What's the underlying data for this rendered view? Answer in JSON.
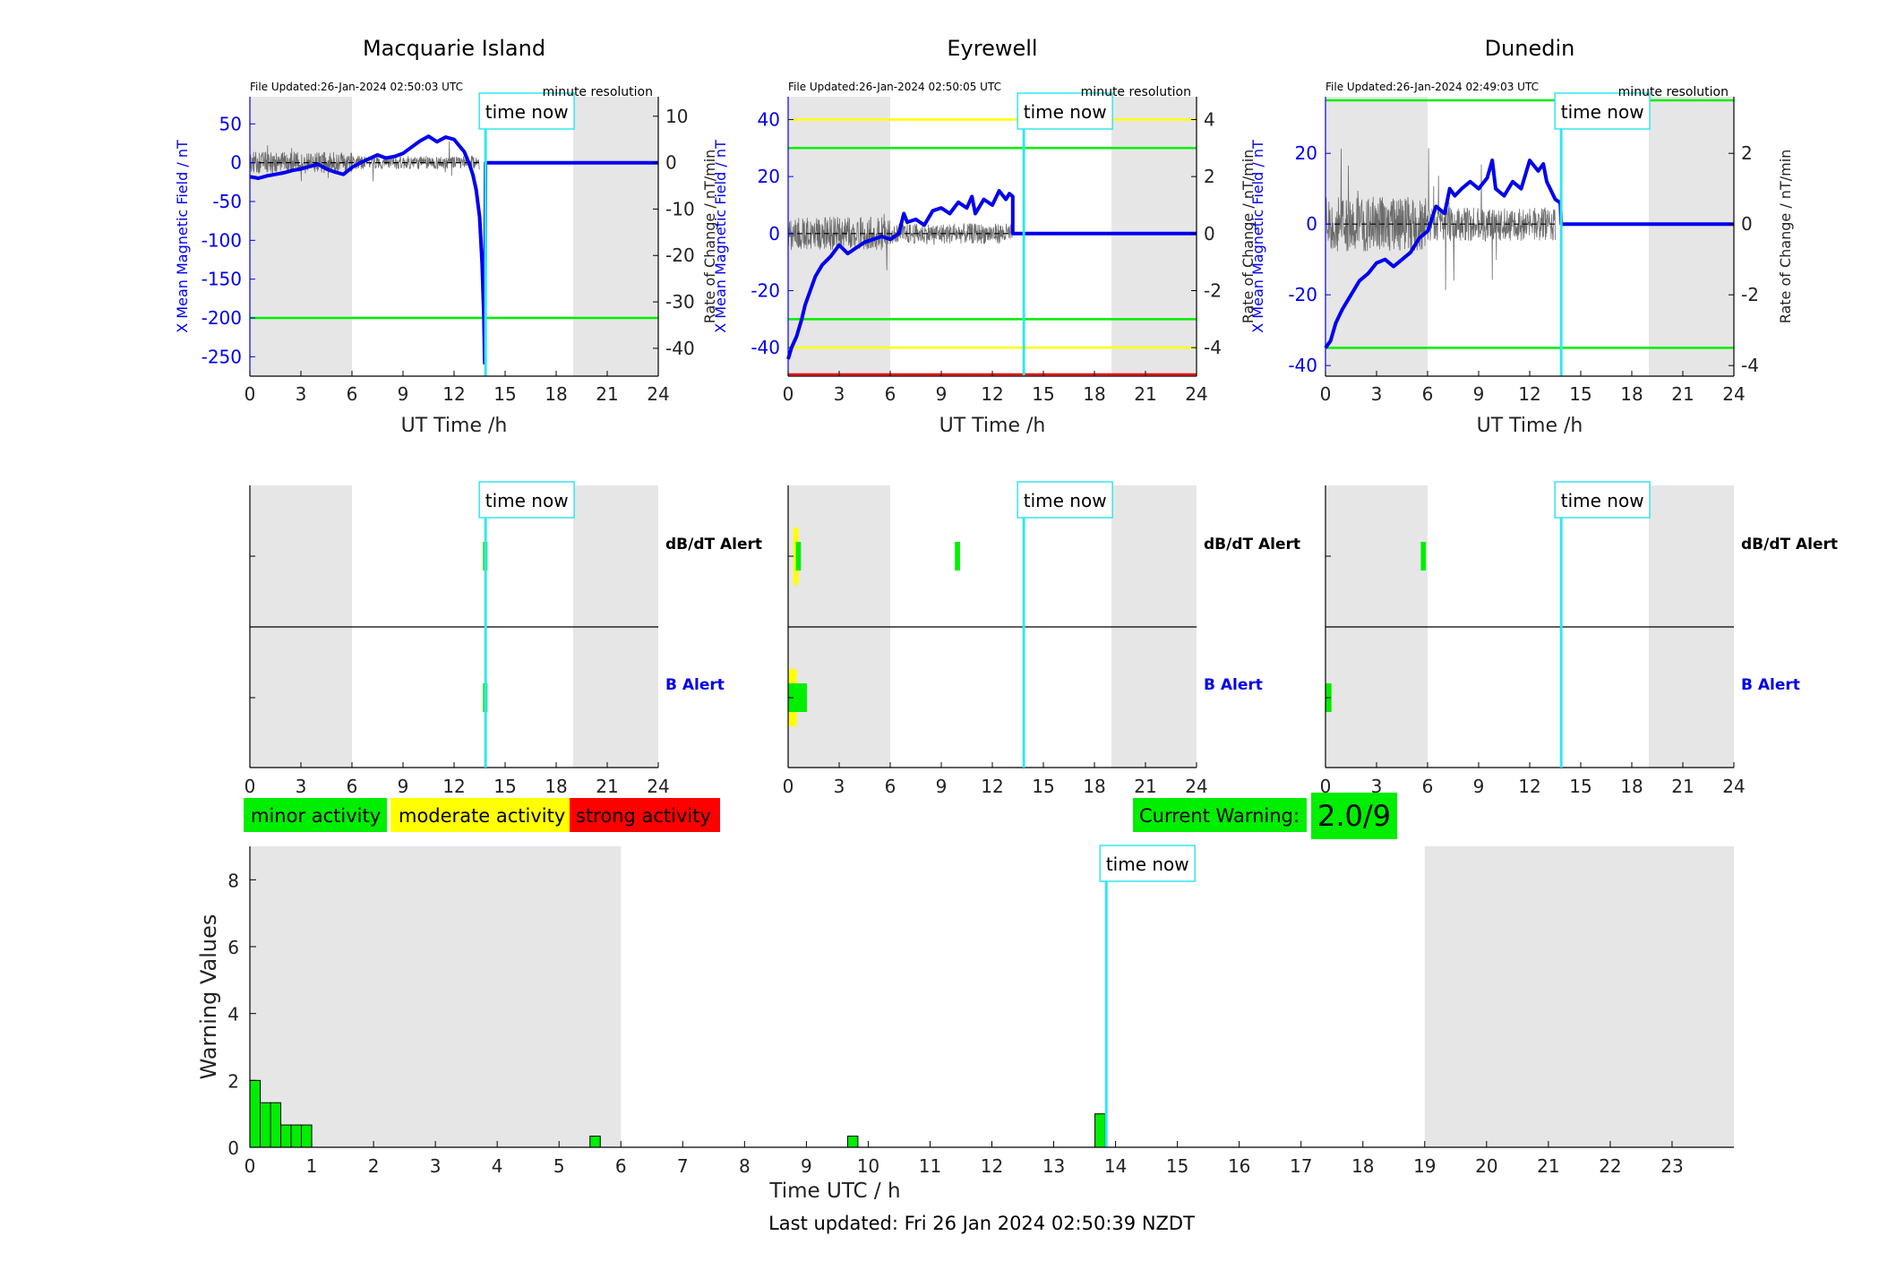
{
  "legend": {
    "minor": "minor activity",
    "moderate": "moderate activity",
    "strong": "strong activity"
  },
  "current_warning": {
    "label": "Current Warning:",
    "value": "2.0/9"
  },
  "last_updated": "Last updated: Fri 26 Jan 2024 02:50:39 NZDT",
  "time_now_label": "time now",
  "time_now_hours": 13.85,
  "colors": {
    "xfield": "#0000ee",
    "rate": "#555555",
    "time_now": "#33e6f0",
    "shade": "#e6e6e6",
    "minor": "#00ee00",
    "moderate": "#ffff00",
    "strong": "#ff0000",
    "b_alert_text": "#0000ee"
  },
  "magnetometer_panels": [
    {
      "station": "Macquarie Island",
      "file_updated": "File Updated:26-Jan-2024 02:50:03 UTC",
      "resolution": "minute resolution",
      "xlabel": "UT Time /h",
      "ylabel_left": "X Mean Magnetic Field / nT",
      "ylabel_right": "Rate of Change / nT/min",
      "xlim": [
        0,
        24
      ],
      "xticks": [
        0,
        3,
        6,
        9,
        12,
        15,
        18,
        21,
        24
      ],
      "ylim_left": [
        -275,
        85
      ],
      "yticks_left": [
        50,
        0,
        -50,
        -100,
        -150,
        -200,
        -250
      ],
      "ylim_right": [
        -46,
        14.2
      ],
      "yticks_right": [
        10,
        0,
        -10,
        -20,
        -30,
        -40
      ],
      "shaded_hours": [
        [
          0,
          6
        ],
        [
          19,
          24
        ]
      ],
      "threshold_lines": [
        {
          "value": -200,
          "color": "#00ee00"
        }
      ],
      "x_field": [
        [
          0,
          -18
        ],
        [
          0.5,
          -20
        ],
        [
          1,
          -17
        ],
        [
          1.5,
          -15
        ],
        [
          2,
          -13
        ],
        [
          2.5,
          -10
        ],
        [
          3,
          -8
        ],
        [
          3.5,
          -5
        ],
        [
          4,
          -2
        ],
        [
          4.5,
          -8
        ],
        [
          5,
          -12
        ],
        [
          5.5,
          -15
        ],
        [
          6,
          -6
        ],
        [
          6.5,
          0
        ],
        [
          7,
          5
        ],
        [
          7.5,
          10
        ],
        [
          8,
          6
        ],
        [
          8.5,
          8
        ],
        [
          9,
          12
        ],
        [
          9.5,
          20
        ],
        [
          10,
          28
        ],
        [
          10.5,
          34
        ],
        [
          11,
          27
        ],
        [
          11.5,
          33
        ],
        [
          12,
          30
        ],
        [
          12.3,
          22
        ],
        [
          12.6,
          14
        ],
        [
          12.9,
          -2
        ],
        [
          13.1,
          -15
        ],
        [
          13.3,
          -35
        ],
        [
          13.5,
          -70
        ],
        [
          13.65,
          -130
        ],
        [
          13.75,
          -200
        ],
        [
          13.8,
          -258
        ],
        [
          13.85,
          0
        ],
        [
          24,
          0
        ]
      ],
      "rate_noise": {
        "start": 0,
        "end": 13.5,
        "amp": 1.8,
        "spike_amp": 5
      }
    },
    {
      "station": "Eyrewell",
      "file_updated": "File Updated:26-Jan-2024 02:50:05 UTC",
      "resolution": "minute resolution",
      "xlabel": "UT Time /h",
      "ylabel_left": "X Mean Magnetic Field / nT",
      "ylabel_right": "Rate of Change / nT/min",
      "xlim": [
        0,
        24
      ],
      "xticks": [
        0,
        3,
        6,
        9,
        12,
        15,
        18,
        21,
        24
      ],
      "ylim_left": [
        -50,
        48
      ],
      "yticks_left": [
        40,
        20,
        0,
        -20,
        -40
      ],
      "ylim_right": [
        -5,
        4.8
      ],
      "yticks_right": [
        4,
        2,
        0,
        -2,
        -4
      ],
      "shaded_hours": [
        [
          0,
          6
        ],
        [
          19,
          24
        ]
      ],
      "threshold_lines": [
        {
          "value": 40,
          "color": "#ffff00"
        },
        {
          "value": 30,
          "color": "#00ee00"
        },
        {
          "value": -30,
          "color": "#00ee00"
        },
        {
          "value": -40,
          "color": "#ffff00"
        },
        {
          "value": -50,
          "color": "#ff0000"
        }
      ],
      "x_field": [
        [
          0,
          -44
        ],
        [
          0.2,
          -40
        ],
        [
          0.5,
          -36
        ],
        [
          0.8,
          -30
        ],
        [
          1,
          -25
        ],
        [
          1.3,
          -20
        ],
        [
          1.6,
          -15
        ],
        [
          2,
          -11
        ],
        [
          2.5,
          -8
        ],
        [
          3,
          -4
        ],
        [
          3.5,
          -7
        ],
        [
          4,
          -5
        ],
        [
          4.5,
          -3
        ],
        [
          5,
          -2
        ],
        [
          5.5,
          -1
        ],
        [
          6,
          -2
        ],
        [
          6.5,
          0
        ],
        [
          6.8,
          7
        ],
        [
          7,
          4
        ],
        [
          7.5,
          5
        ],
        [
          8,
          3
        ],
        [
          8.5,
          8
        ],
        [
          9,
          9
        ],
        [
          9.5,
          7
        ],
        [
          10,
          11
        ],
        [
          10.5,
          9
        ],
        [
          10.8,
          13
        ],
        [
          11,
          7
        ],
        [
          11.5,
          12
        ],
        [
          12,
          10
        ],
        [
          12.4,
          15
        ],
        [
          12.8,
          12
        ],
        [
          13,
          14
        ],
        [
          13.2,
          13
        ],
        [
          13.2,
          0
        ],
        [
          24,
          0
        ]
      ],
      "rate_noise": {
        "start": 0,
        "end": 13.2,
        "amp": 0.45,
        "spike_amp": 1.4
      }
    },
    {
      "station": "Dunedin",
      "file_updated": "File Updated:26-Jan-2024 02:49:03 UTC",
      "resolution": "minute resolution",
      "xlabel": "UT Time /h",
      "ylabel_left": "X Mean Magnetic Field / nT",
      "ylabel_right": "Rate of Change / nT/min",
      "xlim": [
        0,
        24
      ],
      "xticks": [
        0,
        3,
        6,
        9,
        12,
        15,
        18,
        21,
        24
      ],
      "ylim_left": [
        -43,
        36
      ],
      "yticks_left": [
        20,
        0,
        -20,
        -40
      ],
      "ylim_right": [
        -4.3,
        3.6
      ],
      "yticks_right": [
        2,
        0,
        -2,
        -4
      ],
      "shaded_hours": [
        [
          0,
          6
        ],
        [
          19,
          24
        ]
      ],
      "threshold_lines": [
        {
          "value": 35,
          "color": "#00ee00"
        },
        {
          "value": -35,
          "color": "#00ee00"
        }
      ],
      "x_field": [
        [
          0,
          -35
        ],
        [
          0.3,
          -33
        ],
        [
          0.6,
          -28
        ],
        [
          1,
          -24
        ],
        [
          1.5,
          -20
        ],
        [
          2,
          -16
        ],
        [
          2.5,
          -14
        ],
        [
          3,
          -11
        ],
        [
          3.5,
          -10
        ],
        [
          4,
          -12
        ],
        [
          4.5,
          -10
        ],
        [
          5,
          -8
        ],
        [
          5.5,
          -4
        ],
        [
          6,
          -2
        ],
        [
          6.5,
          5
        ],
        [
          7,
          3
        ],
        [
          7.3,
          10
        ],
        [
          7.6,
          8
        ],
        [
          8,
          10
        ],
        [
          8.5,
          12
        ],
        [
          9,
          10
        ],
        [
          9.5,
          13
        ],
        [
          9.8,
          18
        ],
        [
          10,
          10
        ],
        [
          10.5,
          8
        ],
        [
          11,
          12
        ],
        [
          11.5,
          10
        ],
        [
          12,
          18
        ],
        [
          12.5,
          15
        ],
        [
          12.8,
          17
        ],
        [
          13,
          12
        ],
        [
          13.5,
          7
        ],
        [
          13.8,
          6
        ],
        [
          13.85,
          0
        ],
        [
          24,
          0
        ]
      ],
      "rate_noise": {
        "start": 0,
        "end": 13.5,
        "amp": 0.6,
        "spike_amp": 2.5
      }
    }
  ],
  "alert_panels": [
    {
      "dbdt_label": "dB/dT Alert",
      "b_label": "B Alert",
      "xticks": [
        0,
        3,
        6,
        9,
        12,
        15,
        18,
        21,
        24
      ],
      "dbdt_alerts": [
        {
          "t": 13.7,
          "w": 0.2,
          "level": "minor"
        }
      ],
      "b_alerts": [
        {
          "t": 13.7,
          "w": 0.2,
          "level": "minor"
        }
      ]
    },
    {
      "dbdt_label": "dB/dT Alert",
      "b_label": "B Alert",
      "xticks": [
        0,
        3,
        6,
        9,
        12,
        15,
        18,
        21,
        24
      ],
      "dbdt_alerts": [
        {
          "t": 0.3,
          "w": 0.3,
          "level": "moderate"
        },
        {
          "t": 0.45,
          "w": 0.3,
          "level": "minor"
        },
        {
          "t": 9.8,
          "w": 0.3,
          "level": "minor"
        }
      ],
      "b_alerts": [
        {
          "t": 0,
          "w": 0.5,
          "level": "moderate"
        },
        {
          "t": 0,
          "w": 1.1,
          "level": "minor"
        }
      ]
    },
    {
      "dbdt_label": "dB/dT Alert",
      "b_label": "B Alert",
      "xticks": [
        0,
        3,
        6,
        9,
        12,
        15,
        18,
        21,
        24
      ],
      "dbdt_alerts": [
        {
          "t": 5.6,
          "w": 0.3,
          "level": "minor"
        }
      ],
      "b_alerts": [
        {
          "t": 0,
          "w": 0.35,
          "level": "minor"
        }
      ]
    }
  ],
  "chart_data": {
    "type": "bar",
    "xlabel": "Time UTC / h",
    "ylabel": "Warning Values",
    "xlim": [
      0,
      24
    ],
    "ylim": [
      0,
      9
    ],
    "xticks": [
      0,
      1,
      2,
      3,
      4,
      5,
      6,
      7,
      8,
      9,
      10,
      11,
      12,
      13,
      14,
      15,
      16,
      17,
      18,
      19,
      20,
      21,
      22,
      23
    ],
    "yticks": [
      0,
      2,
      4,
      6,
      8
    ],
    "bar_width_hours": 0.1667,
    "shaded_hours": [
      [
        0,
        6
      ],
      [
        19,
        24
      ]
    ],
    "bars": [
      {
        "t": 0.0,
        "value": 2.0
      },
      {
        "t": 0.1667,
        "value": 1.333
      },
      {
        "t": 0.3333,
        "value": 1.333
      },
      {
        "t": 0.5,
        "value": 0.667
      },
      {
        "t": 0.6667,
        "value": 0.667
      },
      {
        "t": 0.8333,
        "value": 0.667
      },
      {
        "t": 5.5,
        "value": 0.333
      },
      {
        "t": 9.667,
        "value": 0.333
      },
      {
        "t": 13.667,
        "value": 1.0
      }
    ]
  }
}
